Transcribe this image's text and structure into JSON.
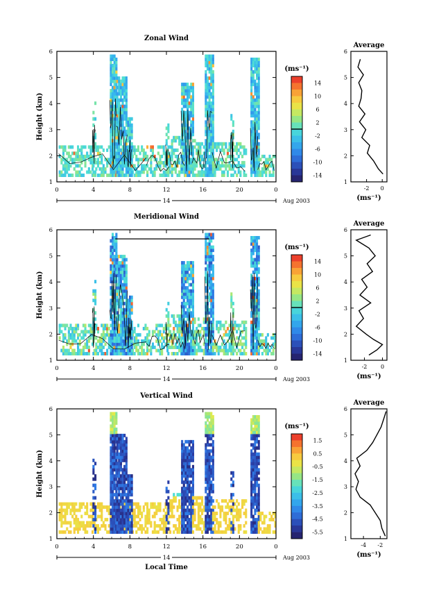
{
  "chart_data": [
    {
      "type": "heatmap",
      "title": "Zonal Wind",
      "xlabel": "",
      "ylabel": "Height (km)",
      "xlim": [
        0,
        24
      ],
      "ylim": [
        1,
        6
      ],
      "xticks": [
        "0",
        "4",
        "8",
        "12",
        "16",
        "20",
        "0"
      ],
      "yticks": [
        "1",
        "2",
        "3",
        "4",
        "5",
        "6"
      ],
      "day_label": "14",
      "date_label": "Aug 2003",
      "colorbar": {
        "unit": "(ms⁻¹)",
        "range": [
          -15,
          15
        ],
        "ticks": [
          "14",
          "10",
          "6",
          "2",
          "-2",
          "-6",
          "-10",
          "-14"
        ]
      },
      "average_profile": {
        "title": "Average",
        "xlabel": "(ms⁻¹)",
        "xlim": [
          -4,
          0.6
        ],
        "xticks": [
          "-2",
          "0"
        ],
        "height": [
          1.3,
          1.5,
          1.8,
          2.1,
          2.4,
          2.7,
          3.0,
          3.3,
          3.6,
          3.9,
          4.2,
          4.5,
          4.8,
          5.1,
          5.4,
          5.7
        ],
        "value": [
          0.1,
          -0.5,
          -1.1,
          -1.9,
          -1.6,
          -2.6,
          -2.1,
          -2.9,
          -2.2,
          -3.0,
          -2.7,
          -2.6,
          -3.0,
          -2.4,
          -3.1,
          -2.8
        ]
      }
    },
    {
      "type": "heatmap",
      "title": "Meridional Wind",
      "xlabel": "",
      "ylabel": "Height (km)",
      "xlim": [
        0,
        24
      ],
      "ylim": [
        1,
        6
      ],
      "xticks": [
        "0",
        "4",
        "8",
        "12",
        "16",
        "20",
        "0"
      ],
      "yticks": [
        "1",
        "2",
        "3",
        "4",
        "5",
        "6"
      ],
      "day_label": "14",
      "date_label": "Aug 2003",
      "colorbar": {
        "unit": "(ms⁻¹)",
        "range": [
          -15,
          15
        ],
        "ticks": [
          "14",
          "10",
          "6",
          "2",
          "-2",
          "-6",
          "-10",
          "-14"
        ]
      },
      "average_profile": {
        "title": "Average",
        "xlabel": "(ms⁻¹)",
        "xlim": [
          -3.5,
          0.5
        ],
        "xticks": [
          "-2",
          "0"
        ],
        "height": [
          1.2,
          1.4,
          1.6,
          1.8,
          2.0,
          2.3,
          2.6,
          2.9,
          3.2,
          3.5,
          3.8,
          4.1,
          4.4,
          4.7,
          5.0,
          5.3,
          5.6,
          5.8
        ],
        "value": [
          -1.5,
          -0.6,
          0.0,
          -1.0,
          -1.8,
          -2.9,
          -2.1,
          -2.6,
          -1.3,
          -2.5,
          -1.7,
          -2.3,
          -1.1,
          -1.7,
          -0.8,
          -1.5,
          -2.9,
          -1.3
        ]
      }
    },
    {
      "type": "heatmap",
      "title": "Vertical Wind",
      "xlabel": "Local Time",
      "ylabel": "Height (km)",
      "xlim": [
        0,
        24
      ],
      "ylim": [
        1,
        6
      ],
      "xticks": [
        "0",
        "4",
        "8",
        "12",
        "16",
        "20",
        "0"
      ],
      "yticks": [
        "1",
        "2",
        "3",
        "4",
        "5",
        "6"
      ],
      "day_label": "14",
      "date_label": "Aug 2003",
      "colorbar": {
        "unit": "(ms⁻¹)",
        "range": [
          -6,
          2
        ],
        "ticks": [
          "1.5",
          "0.5",
          "-0.5",
          "-1.5",
          "-2.5",
          "-3.5",
          "-4.5",
          "-5.5"
        ]
      },
      "average_profile": {
        "title": "Average",
        "xlabel": "(ms⁻¹)",
        "xlim": [
          -5.5,
          -1.2
        ],
        "xticks": [
          "-4",
          "-2"
        ],
        "height": [
          1.1,
          1.4,
          1.7,
          2.0,
          2.3,
          2.6,
          2.9,
          3.2,
          3.5,
          3.8,
          4.1,
          4.4,
          4.7,
          5.0,
          5.3,
          5.6,
          5.9
        ],
        "value": [
          -1.4,
          -1.8,
          -2.0,
          -2.6,
          -3.2,
          -4.4,
          -4.9,
          -4.6,
          -5.0,
          -4.4,
          -4.8,
          -3.6,
          -2.9,
          -2.4,
          -1.9,
          -1.6,
          -1.3
        ]
      }
    }
  ]
}
